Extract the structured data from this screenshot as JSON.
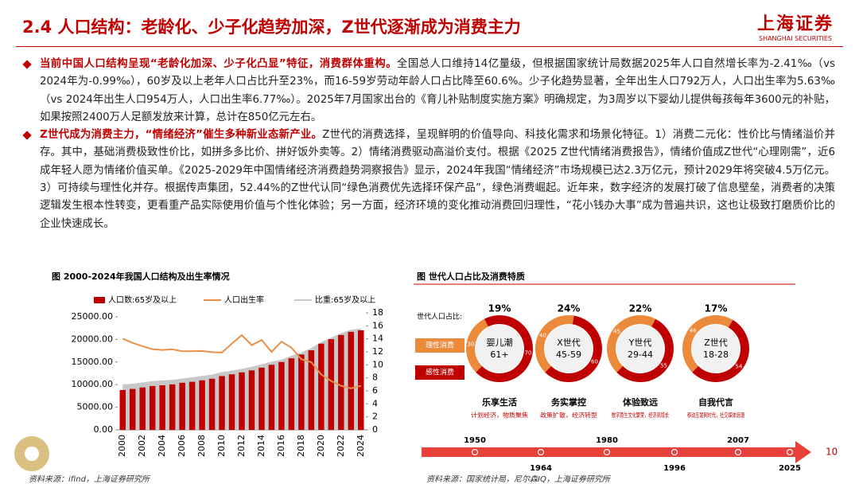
{
  "header": {
    "title": "2.4 人口结构：老龄化、少子化趋势加深，Z世代逐渐成为消费主力",
    "logo": "上海证券",
    "logo_sub": "SHANGHAI SECURITIES"
  },
  "bullets": [
    {
      "lead": "当前中国人口结构呈现“老龄化加深、少子化凸显”特征，消费群体重构。",
      "body": "全国总人口维持14亿量级，但根据国家统计局数据2025年人口自然增长率为-2.41‰（vs 2024年为-0.99‰），60岁及以上老年人口占比升至23%，而16-59岁劳动年龄人口占比降至60.6%。少子化趋势显著，全年出生人口792万人，人口出生率为5.63‰（vs 2024年出生人口954万人，人口出生率6.77‰）。2025年7月国家出台的《育儿补贴制度实施方案》明确规定，为3周岁以下婴幼儿提供每孩每年3600元的补贴，如果按照2400万人足额发放来计算，总计在850亿元左右。"
    },
    {
      "lead": "Z世代成为消费主力，“情绪经济”催生多种新业态新产业。",
      "body": "Z世代的消费选择，呈现鲜明的价值导向、科技化需求和场景化特征。1）消费二元化：性价比与情绪溢价并存。其中，基础消费极致性价比，如拼多多比价、拼好饭外卖等。2）情绪消费驱动高溢价支付。根据《2025 Z世代情绪消费报告》，情绪价值成Z世代“心理刚需”，近6成年轻人愿为情绪价值买单。《2025-2029年中国情绪经济消费趋势洞察报告》显示，2024年我国“情绪经济”市场规模已达2.3万亿元，预计2029年将突破4.5万亿元。3）可持续与理性化并存。根据传声集团，52.44%的Z世代认同“绿色消费优先选择环保产品”，绿色消费崛起。近年来，数字经济的发展打破了信息壁垒，消费者的决策逻辑发生根本性转变，更看重产品实际使用价值与个性化体验；另一方面，经济环境的变化推动消费回归理性，“花小钱办大事”成为普遍共识，这也让极致打磨质价比的企业快速成长。"
    }
  ],
  "chart_data": {
    "type": "bar",
    "title": "图 2000-2024年我国人口结构及出生率情况",
    "categories": [
      "2000",
      null,
      "2002",
      null,
      "2004",
      null,
      "2006",
      null,
      "2008",
      null,
      "2010",
      null,
      "2012",
      null,
      "2014",
      null,
      "2016",
      null,
      "2018",
      null,
      "2020",
      null,
      "2022",
      null,
      "2024"
    ],
    "series": [
      {
        "name": "人口数:65岁及以上",
        "type": "bar",
        "color": "#c00000",
        "values": [
          8821,
          9062,
          9377,
          9692,
          9857,
          10055,
          10419,
          10636,
          10956,
          11307,
          11894,
          12288,
          12714,
          13161,
          13755,
          14386,
          15003,
          15831,
          16658,
          17603,
          19064,
          20056,
          20978,
          21676,
          22023
        ]
      },
      {
        "name": "人口出生率",
        "type": "line",
        "axis": "y2",
        "color": "#e8914a",
        "values": [
          14.03,
          13.38,
          12.86,
          12.41,
          12.29,
          12.4,
          12.09,
          12.1,
          12.14,
          11.95,
          11.9,
          13.27,
          14.57,
          13.03,
          13.83,
          11.99,
          13.57,
          12.64,
          10.86,
          10.41,
          8.52,
          7.52,
          6.77,
          6.39,
          6.77
        ]
      },
      {
        "name": "比重:65岁及以上",
        "type": "area",
        "axis": "y2",
        "color": "#c8c8c8",
        "values": [
          7.0,
          7.1,
          7.3,
          7.5,
          7.6,
          7.7,
          7.9,
          8.1,
          8.3,
          8.5,
          8.9,
          9.1,
          9.4,
          9.7,
          10.1,
          10.5,
          10.8,
          11.4,
          11.9,
          12.6,
          13.5,
          14.2,
          14.9,
          15.4,
          15.6
        ]
      }
    ],
    "ylim": [
      0,
      25000
    ],
    "yticks": [
      {
        "value": 0,
        "label": "0.00"
      },
      {
        "value": 5000,
        "label": "5000.00"
      },
      {
        "value": 10000,
        "label": "10000.00"
      },
      {
        "value": 15000,
        "label": "15000.00"
      },
      {
        "value": 20000,
        "label": "20000.00"
      },
      {
        "value": 25000,
        "label": "25000.00"
      }
    ],
    "y2lim": [
      0,
      18
    ],
    "y2ticks": [
      0,
      2,
      4,
      6,
      8,
      10,
      12,
      14,
      16,
      18
    ],
    "grid": false,
    "legend": "top",
    "source": "资料来源：ifind，上海证券研究所"
  },
  "infographic": {
    "title": "图 世代人口占比及消费特质",
    "share_label": "世代人口占比:",
    "legend": [
      {
        "name": "理性消费",
        "color": "#ec8a3c"
      },
      {
        "name": "感性消费",
        "color": "#c00000"
      }
    ],
    "generations": [
      {
        "name": "婴儿潮",
        "age": "61+",
        "share": 19,
        "share_label": "19%",
        "split": [
          30,
          70
        ],
        "trait": "乐享生活",
        "trait_note": "计划经济，物质聚焦"
      },
      {
        "name": "X世代",
        "age": "45-59",
        "share": 24,
        "share_label": "24%",
        "split": [
          40,
          60
        ],
        "trait": "务实掌控",
        "trait_note": "政策扩散，经济转型"
      },
      {
        "name": "Y世代",
        "age": "29-44",
        "share": 22,
        "share_label": "22%",
        "split": [
          45,
          55
        ],
        "trait": "体验致远",
        "trait_note": "数字原生文化繁荣，经济高增长"
      },
      {
        "name": "Z世代",
        "age": "18-28",
        "share": 17,
        "share_label": "17%",
        "split": [
          46,
          54
        ],
        "trait": "自我代言",
        "trait_note": "移动互联网时代，社交媒体浪潮"
      }
    ],
    "timeline": [
      "1950",
      "1964",
      "1980",
      "1996",
      "2007",
      "2025"
    ],
    "source": "资料来源：国家统计局，尼尔森IQ，上海证券研究所"
  },
  "page_number": "10"
}
